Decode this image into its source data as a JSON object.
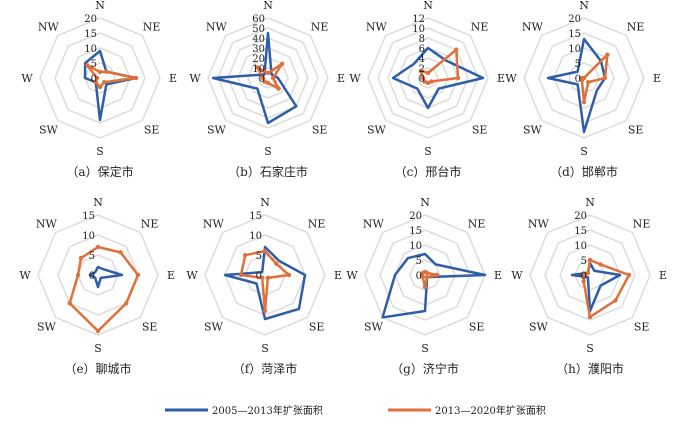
{
  "chart_data": [
    {
      "type": "radar",
      "title": "（a）保定市",
      "categories": [
        "N",
        "NE",
        "E",
        "SE",
        "S",
        "SW",
        "W",
        "NW"
      ],
      "ticks": [
        0,
        5,
        10,
        15,
        20
      ],
      "rlim": [
        0,
        20
      ],
      "series": [
        {
          "name": "2005—2013年扩张面积",
          "values": [
            9,
            3,
            12,
            3,
            14,
            2,
            5,
            7
          ]
        },
        {
          "name": "2013—2020年扩张面积",
          "values": [
            2,
            3,
            12,
            2,
            3,
            2,
            1,
            6
          ]
        }
      ]
    },
    {
      "type": "radar",
      "title": "（b）石家庄市",
      "categories": [
        "N",
        "NE",
        "E",
        "SE",
        "S",
        "SW",
        "W",
        "NW"
      ],
      "ticks": [
        0,
        10,
        20,
        30,
        40,
        50,
        60
      ],
      "rlim": [
        0,
        60
      ],
      "series": [
        {
          "name": "2005—2013年扩张面积",
          "values": [
            45,
            5,
            10,
            40,
            45,
            15,
            55,
            5
          ]
        },
        {
          "name": "2013—2020年扩张面积",
          "values": [
            5,
            20,
            5,
            15,
            5,
            5,
            5,
            15
          ]
        }
      ]
    },
    {
      "type": "radar",
      "title": "（c）邢台市",
      "categories": [
        "N",
        "NE",
        "E",
        "SE",
        "S",
        "SW",
        "W",
        "NW"
      ],
      "ticks": [
        0,
        2,
        4,
        6,
        8,
        10,
        12
      ],
      "rlim": [
        0,
        12
      ],
      "series": [
        {
          "name": "2005—2013年扩张面积",
          "values": [
            6,
            5,
            11,
            3,
            6,
            3,
            7,
            4
          ]
        },
        {
          "name": "2013—2020年扩张面积",
          "values": [
            1,
            8,
            6,
            1,
            1,
            1,
            1,
            2
          ]
        }
      ]
    },
    {
      "type": "radar",
      "title": "（d）邯郸市",
      "categories": [
        "N",
        "NE",
        "E",
        "SE",
        "S",
        "SW",
        "W",
        "NW"
      ],
      "ticks": [
        0,
        5,
        10,
        15,
        20
      ],
      "rlim": [
        0,
        20
      ],
      "series": [
        {
          "name": "2005—2013年扩张面积",
          "values": [
            13,
            8,
            7,
            6,
            18,
            3,
            12,
            3
          ]
        },
        {
          "name": "2013—2020年扩张面积",
          "values": [
            0,
            11,
            7,
            2,
            8,
            1,
            1,
            0
          ]
        }
      ]
    },
    {
      "type": "radar",
      "title": "（e）聊城市",
      "categories": [
        "N",
        "NE",
        "E",
        "SE",
        "S",
        "SW",
        "W",
        "NW"
      ],
      "ticks": [
        0,
        5,
        10,
        15
      ],
      "rlim": [
        0,
        15
      ],
      "series": [
        {
          "name": "2005—2013年扩张面积",
          "values": [
            2,
            2,
            6,
            1,
            3,
            1,
            2,
            1
          ]
        },
        {
          "name": "2013—2020年扩张面积",
          "values": [
            7,
            8,
            10,
            10,
            14,
            10,
            5,
            6
          ]
        }
      ]
    },
    {
      "type": "radar",
      "title": "（f）菏泽市",
      "categories": [
        "N",
        "NE",
        "E",
        "SE",
        "S",
        "SW",
        "W",
        "NW"
      ],
      "ticks": [
        0,
        5,
        10,
        15
      ],
      "rlim": [
        0,
        15
      ],
      "series": [
        {
          "name": "2005—2013年扩张面积",
          "values": [
            7,
            5,
            10,
            12,
            11,
            3,
            10,
            1
          ]
        },
        {
          "name": "2013—2020年扩张面积",
          "values": [
            6,
            4,
            6,
            1,
            9,
            1,
            6,
            7
          ]
        }
      ]
    },
    {
      "type": "radar",
      "title": "（g）济宁市",
      "categories": [
        "N",
        "NE",
        "E",
        "SE",
        "S",
        "SW",
        "W",
        "NW"
      ],
      "ticks": [
        0,
        5,
        10,
        15,
        20
      ],
      "rlim": [
        0,
        20
      ],
      "series": [
        {
          "name": "2005—2013年扩张面积",
          "values": [
            7,
            5,
            20,
            1,
            12,
            20,
            10,
            8
          ]
        },
        {
          "name": "2013—2020年扩张面积",
          "values": [
            1,
            1,
            4,
            1,
            4,
            1,
            1,
            1
          ]
        }
      ]
    },
    {
      "type": "radar",
      "title": "（h）濮阳市",
      "categories": [
        "N",
        "NE",
        "E",
        "SE",
        "S",
        "SW",
        "W",
        "NW"
      ],
      "ticks": [
        0,
        5,
        10,
        15,
        20
      ],
      "rlim": [
        0,
        20
      ],
      "series": [
        {
          "name": "2005—2013年扩张面积",
          "values": [
            4,
            2,
            10,
            5,
            12,
            1,
            6,
            1
          ]
        },
        {
          "name": "2013—2020年扩张面积",
          "values": [
            5,
            5,
            13,
            12,
            14,
            3,
            2,
            1
          ]
        }
      ]
    }
  ],
  "legend": {
    "placement": "bottom",
    "items": [
      "2005—2013年扩张面积",
      "2013—2020年扩张面积"
    ]
  },
  "colors": [
    "#2e5ea8",
    "#e0703a"
  ]
}
